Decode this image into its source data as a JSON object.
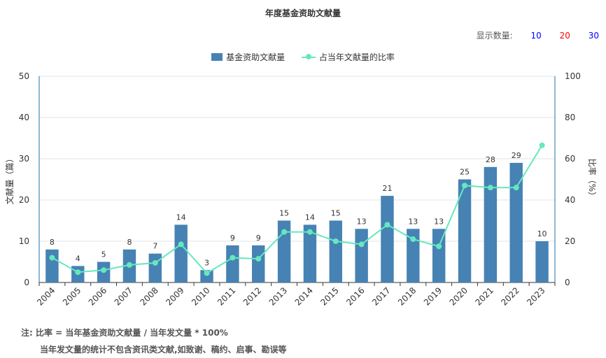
{
  "chart_data": {
    "type": "bar",
    "title": "年度基金资助文献量",
    "categories": [
      "2004",
      "2005",
      "2006",
      "2007",
      "2008",
      "2009",
      "2010",
      "2011",
      "2012",
      "2013",
      "2014",
      "2015",
      "2016",
      "2017",
      "2018",
      "2019",
      "2020",
      "2021",
      "2022",
      "2023"
    ],
    "series": [
      {
        "name": "基金资助文献量",
        "type": "bar",
        "axis": "left",
        "color": "#4682b4",
        "values": [
          8,
          4,
          5,
          8,
          7,
          14,
          3,
          9,
          9,
          15,
          14,
          15,
          13,
          21,
          13,
          13,
          25,
          28,
          29,
          10
        ]
      },
      {
        "name": "占当年文献量的比率",
        "type": "line",
        "axis": "right",
        "color": "#66e8bd",
        "values": [
          12,
          5,
          6,
          8.5,
          9.5,
          18.5,
          4.5,
          12,
          11.5,
          24.5,
          24.5,
          20,
          18.5,
          28,
          21,
          17.5,
          47,
          46,
          46,
          66.5
        ]
      }
    ],
    "ylabel": "文献量（篇）",
    "ylabel_right": "比率（%）",
    "ylim": [
      0,
      50
    ],
    "ylim_right": [
      0,
      100
    ],
    "yticks": [
      0,
      10,
      20,
      30,
      40,
      50
    ],
    "yticks_right": [
      0,
      20,
      40,
      60,
      80,
      100
    ],
    "grid": true,
    "legend": "top-center"
  },
  "controls": {
    "label": "显示数量:",
    "options": [
      {
        "label": "10",
        "color": "#0000ff"
      },
      {
        "label": "20",
        "color": "#ff0000"
      },
      {
        "label": "30",
        "color": "#0000ff"
      }
    ]
  },
  "notes": {
    "line1": "注:   比率 = 当年基金资助文献量 / 当年发文量 * 100%",
    "line2": "当年发文量的统计不包含资讯类文献,如致谢、稿约、启事、勘误等"
  }
}
